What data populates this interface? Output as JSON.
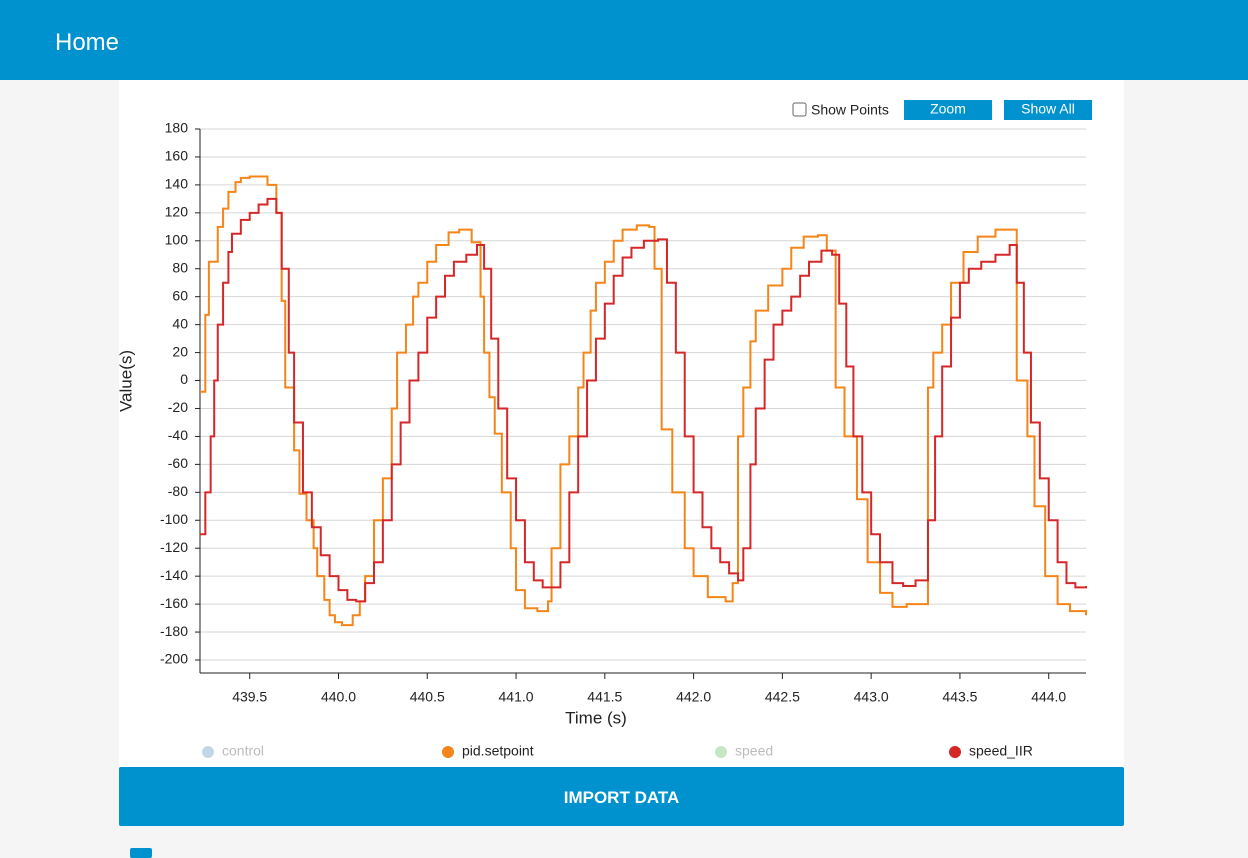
{
  "header": {
    "title": "Home"
  },
  "controls": {
    "show_points": "Show Points",
    "zoom": "Zoom",
    "show_all": "Show All"
  },
  "chart_data": {
    "type": "line",
    "step": true,
    "x_label": "Time (s)",
    "y_label": "Value(s)",
    "xlim": [
      439.22,
      444.21
    ],
    "ylim": [
      -209.3,
      180
    ],
    "xticks": [
      439.5,
      {
        "value": 440,
        "label": "440.0"
      },
      440.5,
      {
        "value": 441,
        "label": "441.0"
      },
      441.5,
      {
        "value": 442,
        "label": "442.0"
      },
      442.5,
      {
        "value": 443,
        "label": "443.0"
      },
      443.5,
      {
        "value": 444,
        "label": "444.0"
      }
    ],
    "yticks": [
      -200,
      -180,
      -160,
      -140,
      -120,
      -100,
      -80,
      -60,
      -40,
      -20,
      0,
      20,
      40,
      60,
      80,
      100,
      120,
      140,
      160,
      180
    ],
    "grid": true,
    "series": [
      {
        "name": "control",
        "color": "#c4d7e8",
        "hidden": true
      },
      {
        "name": "pid.setpoint",
        "color": "#f58518",
        "x": [
          439.22,
          439.25,
          439.27,
          439.32,
          439.35,
          439.38,
          439.42,
          439.45,
          439.5,
          439.55,
          439.6,
          439.65,
          439.68,
          439.7,
          439.75,
          439.78,
          439.82,
          439.86,
          439.88,
          439.92,
          439.95,
          439.98,
          440.02,
          440.08,
          440.12,
          440.15,
          440.2,
          440.25,
          440.3,
          440.33,
          440.38,
          440.42,
          440.45,
          440.5,
          440.55,
          440.62,
          440.68,
          440.75,
          440.8,
          440.82,
          440.85,
          440.88,
          440.92,
          440.97,
          441.0,
          441.05,
          441.12,
          441.18,
          441.2,
          441.25,
          441.3,
          441.35,
          441.38,
          441.42,
          441.45,
          441.5,
          441.55,
          441.6,
          441.68,
          441.75,
          441.78,
          441.82,
          441.88,
          441.95,
          442.0,
          442.08,
          442.18,
          442.22,
          442.25,
          442.28,
          442.32,
          442.35,
          442.42,
          442.5,
          442.55,
          442.62,
          442.7,
          442.75,
          442.8,
          442.85,
          442.92,
          442.98,
          443.05,
          443.12,
          443.2,
          443.32,
          443.35,
          443.4,
          443.45,
          443.52,
          443.6,
          443.7,
          443.78,
          443.82,
          443.88,
          443.92,
          443.98,
          444.05,
          444.12,
          444.21
        ],
        "values": [
          -8,
          47,
          85,
          110,
          123,
          135,
          142,
          145,
          146,
          146,
          140,
          120,
          57,
          -5,
          -50,
          -81,
          -100,
          -120,
          -140,
          -157,
          -168,
          -173,
          -175,
          -168,
          -158,
          -140,
          -100,
          -70,
          -20,
          20,
          40,
          60,
          70,
          85,
          97,
          106,
          108,
          99,
          60,
          20,
          -12,
          -38,
          -80,
          -120,
          -150,
          -163,
          -165,
          -158,
          -120,
          -60,
          -40,
          -5,
          20,
          50,
          70,
          85,
          100,
          108,
          111,
          110,
          80,
          -35,
          -80,
          -120,
          -140,
          -155,
          -158,
          -145,
          -40,
          -5,
          28,
          50,
          68,
          80,
          95,
          103,
          104,
          93,
          -5,
          -40,
          -85,
          -130,
          -152,
          -162,
          -160,
          -5,
          20,
          40,
          70,
          92,
          103,
          108,
          108,
          0,
          -40,
          -90,
          -140,
          -160,
          -165,
          -168
        ]
      },
      {
        "name": "speed",
        "color": "#c7e6c4",
        "hidden": true
      },
      {
        "name": "speed_IIR",
        "color": "#d62728",
        "x": [
          439.22,
          439.25,
          439.28,
          439.3,
          439.32,
          439.35,
          439.38,
          439.4,
          439.45,
          439.5,
          439.55,
          439.6,
          439.65,
          439.68,
          439.72,
          439.75,
          439.8,
          439.85,
          439.9,
          439.95,
          440.0,
          440.05,
          440.1,
          440.15,
          440.2,
          440.25,
          440.3,
          440.35,
          440.4,
          440.45,
          440.5,
          440.55,
          440.6,
          440.65,
          440.72,
          440.78,
          440.82,
          440.86,
          440.9,
          440.95,
          441.0,
          441.05,
          441.1,
          441.15,
          441.2,
          441.25,
          441.3,
          441.35,
          441.4,
          441.45,
          441.5,
          441.55,
          441.6,
          441.65,
          441.72,
          441.8,
          441.85,
          441.9,
          441.95,
          442.0,
          442.05,
          442.1,
          442.15,
          442.2,
          442.25,
          442.28,
          442.32,
          442.35,
          442.4,
          442.45,
          442.5,
          442.55,
          442.6,
          442.65,
          442.72,
          442.78,
          442.82,
          442.86,
          442.9,
          442.95,
          443.0,
          443.05,
          443.12,
          443.18,
          443.25,
          443.32,
          443.36,
          443.4,
          443.45,
          443.5,
          443.55,
          443.62,
          443.7,
          443.78,
          443.82,
          443.86,
          443.9,
          443.95,
          444.0,
          444.05,
          444.1,
          444.15,
          444.21
        ],
        "values": [
          -110,
          -80,
          -40,
          0,
          40,
          70,
          92,
          105,
          115,
          120,
          126,
          130,
          120,
          80,
          20,
          -30,
          -80,
          -105,
          -125,
          -140,
          -150,
          -157,
          -158,
          -145,
          -130,
          -100,
          -60,
          -30,
          0,
          20,
          45,
          60,
          75,
          85,
          90,
          97,
          80,
          30,
          -20,
          -70,
          -100,
          -130,
          -143,
          -148,
          -148,
          -130,
          -80,
          -40,
          0,
          30,
          55,
          75,
          88,
          95,
          100,
          101,
          70,
          20,
          -40,
          -80,
          -105,
          -120,
          -130,
          -138,
          -143,
          -120,
          -60,
          -20,
          15,
          40,
          50,
          60,
          75,
          85,
          93,
          90,
          55,
          10,
          -40,
          -80,
          -110,
          -130,
          -145,
          -147,
          -143,
          -100,
          -40,
          10,
          45,
          70,
          80,
          85,
          90,
          97,
          70,
          20,
          -30,
          -70,
          -100,
          -130,
          -145,
          -148,
          -147
        ]
      }
    ]
  },
  "import_button": "IMPORT DATA"
}
